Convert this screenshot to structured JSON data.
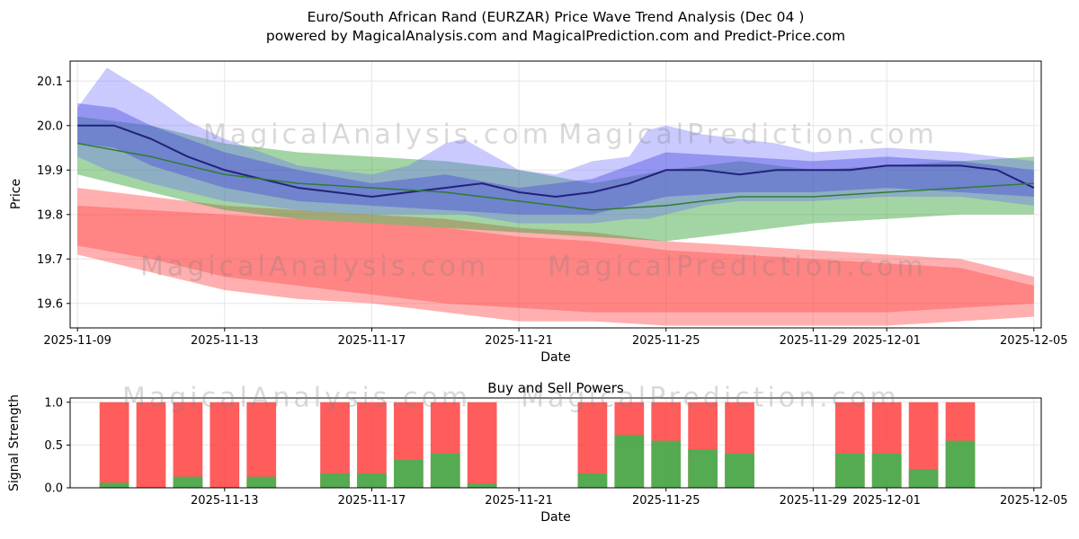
{
  "title": {
    "line1": "Euro/South African Rand (EURZAR) Price Wave Trend Analysis (Dec 04 )",
    "line2": "powered by MagicalAnalysis.com and MagicalPrediction.com and Predict-Price.com"
  },
  "watermarks": {
    "analysis": "MagicalAnalysis.com",
    "prediction": "MagicalPrediction.com"
  },
  "chart_data": [
    {
      "type": "area",
      "title": "",
      "xlabel": "Date",
      "ylabel": "Price",
      "xlim": [
        -0.2,
        26.2
      ],
      "ylim": [
        19.545,
        20.145
      ],
      "grid": true,
      "x_ticks": [
        {
          "day": 0,
          "label": "2025-11-09"
        },
        {
          "day": 4,
          "label": "2025-11-13"
        },
        {
          "day": 8,
          "label": "2025-11-17"
        },
        {
          "day": 12,
          "label": "2025-11-21"
        },
        {
          "day": 16,
          "label": "2025-11-25"
        },
        {
          "day": 20,
          "label": "2025-11-29"
        },
        {
          "day": 22,
          "label": "2025-12-01"
        },
        {
          "day": 26,
          "label": "2025-12-05"
        }
      ],
      "y_ticks": [
        {
          "v": 19.6,
          "label": "19.6"
        },
        {
          "v": 19.7,
          "label": "19.7"
        },
        {
          "v": 19.8,
          "label": "19.8"
        },
        {
          "v": 19.9,
          "label": "19.9"
        },
        {
          "v": 20.0,
          "label": "20.0"
        },
        {
          "v": 20.1,
          "label": "20.1"
        }
      ],
      "bands": [
        {
          "name": "sell-band-outer",
          "color": "#ff4d4d",
          "opacity": 0.45,
          "x": [
            0,
            2,
            4,
            6,
            8,
            10,
            12,
            14,
            16,
            18,
            20,
            22,
            24,
            26
          ],
          "upper": [
            19.86,
            19.84,
            19.82,
            19.81,
            19.8,
            19.79,
            19.77,
            19.76,
            19.74,
            19.73,
            19.72,
            19.71,
            19.7,
            19.66
          ],
          "lower": [
            19.71,
            19.67,
            19.63,
            19.61,
            19.6,
            19.58,
            19.56,
            19.56,
            19.55,
            19.55,
            19.55,
            19.55,
            19.56,
            19.57
          ]
        },
        {
          "name": "sell-band-inner",
          "color": "#ff3333",
          "opacity": 0.35,
          "x": [
            0,
            2,
            4,
            6,
            8,
            10,
            12,
            14,
            16,
            18,
            20,
            22,
            24,
            26
          ],
          "upper": [
            19.82,
            19.81,
            19.8,
            19.79,
            19.78,
            19.77,
            19.75,
            19.74,
            19.72,
            19.71,
            19.7,
            19.69,
            19.68,
            19.64
          ],
          "lower": [
            19.73,
            19.7,
            19.66,
            19.64,
            19.62,
            19.6,
            19.59,
            19.58,
            19.58,
            19.58,
            19.58,
            19.58,
            19.59,
            19.6
          ]
        },
        {
          "name": "buy-band",
          "color": "#33a033",
          "opacity": 0.45,
          "x": [
            0,
            2,
            4,
            6,
            8,
            10,
            12,
            14,
            16,
            18,
            20,
            22,
            24,
            26
          ],
          "upper": [
            20.02,
            20.0,
            19.96,
            19.94,
            19.93,
            19.92,
            19.9,
            19.87,
            19.9,
            19.92,
            19.9,
            19.91,
            19.92,
            19.93
          ],
          "lower": [
            19.89,
            19.85,
            19.81,
            19.79,
            19.78,
            19.77,
            19.76,
            19.75,
            19.74,
            19.76,
            19.78,
            19.79,
            19.8,
            19.8
          ]
        },
        {
          "name": "trend-band-outer",
          "color": "#6666ff",
          "opacity": 0.35,
          "x": [
            0,
            0.8,
            2,
            3,
            4,
            6,
            8,
            9,
            10,
            10.5,
            12,
            13,
            14,
            15,
            15.5,
            16,
            17,
            18,
            19,
            20,
            22,
            24,
            26
          ],
          "upper": [
            20.04,
            20.13,
            20.07,
            20.01,
            19.97,
            19.91,
            19.89,
            19.91,
            19.96,
            19.97,
            19.9,
            19.89,
            19.92,
            19.93,
            19.99,
            20.0,
            19.98,
            19.97,
            19.96,
            19.94,
            19.95,
            19.94,
            19.92
          ],
          "lower": [
            19.93,
            19.9,
            19.87,
            19.85,
            19.83,
            19.81,
            19.8,
            19.8,
            19.8,
            19.8,
            19.78,
            19.78,
            19.78,
            19.79,
            19.79,
            19.8,
            19.82,
            19.83,
            19.83,
            19.83,
            19.84,
            19.84,
            19.82
          ]
        },
        {
          "name": "trend-band-inner",
          "color": "#4444dd",
          "opacity": 0.4,
          "x": [
            0,
            1,
            2,
            4,
            6,
            8,
            10,
            12,
            14,
            16,
            18,
            20,
            22,
            24,
            26
          ],
          "upper": [
            20.05,
            20.04,
            20.0,
            19.94,
            19.9,
            19.87,
            19.89,
            19.86,
            19.88,
            19.94,
            19.93,
            19.92,
            19.93,
            19.92,
            19.9
          ],
          "lower": [
            19.96,
            19.95,
            19.91,
            19.86,
            19.83,
            19.82,
            19.81,
            19.8,
            19.8,
            19.84,
            19.85,
            19.85,
            19.86,
            19.85,
            19.84
          ]
        }
      ],
      "lines": [
        {
          "name": "price-line",
          "color": "#22227a",
          "width": 2,
          "x": [
            0,
            1,
            2,
            3,
            4,
            5,
            6,
            7,
            8,
            9,
            10,
            11,
            12,
            13,
            14,
            15,
            16,
            17,
            18,
            19,
            20,
            21,
            22,
            23,
            24,
            25,
            26
          ],
          "y": [
            20.0,
            20.0,
            19.97,
            19.93,
            19.9,
            19.88,
            19.86,
            19.85,
            19.84,
            19.85,
            19.86,
            19.87,
            19.85,
            19.84,
            19.85,
            19.87,
            19.9,
            19.9,
            19.89,
            19.9,
            19.9,
            19.9,
            19.91,
            19.91,
            19.91,
            19.9,
            19.86
          ]
        },
        {
          "name": "trend-line-green",
          "color": "#2e7d32",
          "width": 1.5,
          "x": [
            0,
            2,
            4,
            6,
            8,
            10,
            12,
            14,
            16,
            18,
            20,
            22,
            24,
            26
          ],
          "y": [
            19.96,
            19.93,
            19.89,
            19.87,
            19.86,
            19.85,
            19.83,
            19.81,
            19.82,
            19.84,
            19.84,
            19.85,
            19.86,
            19.87
          ]
        }
      ]
    },
    {
      "type": "bar",
      "title": "Buy and Sell Powers",
      "xlabel": "Date",
      "ylabel": "Signal Strength",
      "xlim": [
        -0.2,
        26.2
      ],
      "ylim": [
        0,
        1.05
      ],
      "grid": true,
      "bar_width_days": 0.8,
      "sell_color": "#ff4040",
      "buy_color": "#4caf50",
      "x_ticks": [
        {
          "day": 4,
          "label": "2025-11-13"
        },
        {
          "day": 8,
          "label": "2025-11-17"
        },
        {
          "day": 12,
          "label": "2025-11-21"
        },
        {
          "day": 16,
          "label": "2025-11-25"
        },
        {
          "day": 20,
          "label": "2025-11-29"
        },
        {
          "day": 22,
          "label": "2025-12-01"
        },
        {
          "day": 26,
          "label": "2025-12-05"
        }
      ],
      "y_ticks": [
        {
          "v": 0.0,
          "label": "0.0"
        },
        {
          "v": 0.5,
          "label": "0.5"
        },
        {
          "v": 1.0,
          "label": "1.0"
        }
      ],
      "bars": [
        {
          "day": 1,
          "date": "2025-11-10",
          "sell": 1.0,
          "buy": 0.06
        },
        {
          "day": 2,
          "date": "2025-11-11",
          "sell": 1.0,
          "buy": 0.0
        },
        {
          "day": 3,
          "date": "2025-11-12",
          "sell": 1.0,
          "buy": 0.13
        },
        {
          "day": 4,
          "date": "2025-11-13",
          "sell": 1.0,
          "buy": 0.0
        },
        {
          "day": 5,
          "date": "2025-11-14",
          "sell": 1.0,
          "buy": 0.13
        },
        {
          "day": 7,
          "date": "2025-11-16",
          "sell": 1.0,
          "buy": 0.17
        },
        {
          "day": 8,
          "date": "2025-11-17",
          "sell": 1.0,
          "buy": 0.17
        },
        {
          "day": 9,
          "date": "2025-11-18",
          "sell": 1.0,
          "buy": 0.33
        },
        {
          "day": 10,
          "date": "2025-11-19",
          "sell": 1.0,
          "buy": 0.4
        },
        {
          "day": 11,
          "date": "2025-11-20",
          "sell": 1.0,
          "buy": 0.05
        },
        {
          "day": 14,
          "date": "2025-11-23",
          "sell": 1.0,
          "buy": 0.17
        },
        {
          "day": 15,
          "date": "2025-11-24",
          "sell": 1.0,
          "buy": 0.62
        },
        {
          "day": 16,
          "date": "2025-11-25",
          "sell": 1.0,
          "buy": 0.55
        },
        {
          "day": 17,
          "date": "2025-11-26",
          "sell": 1.0,
          "buy": 0.45
        },
        {
          "day": 18,
          "date": "2025-11-27",
          "sell": 1.0,
          "buy": 0.4
        },
        {
          "day": 21,
          "date": "2025-11-30",
          "sell": 1.0,
          "buy": 0.4
        },
        {
          "day": 22,
          "date": "2025-12-01",
          "sell": 1.0,
          "buy": 0.4
        },
        {
          "day": 23,
          "date": "2025-12-02",
          "sell": 1.0,
          "buy": 0.22
        },
        {
          "day": 24,
          "date": "2025-12-03",
          "sell": 1.0,
          "buy": 0.55
        }
      ]
    }
  ]
}
